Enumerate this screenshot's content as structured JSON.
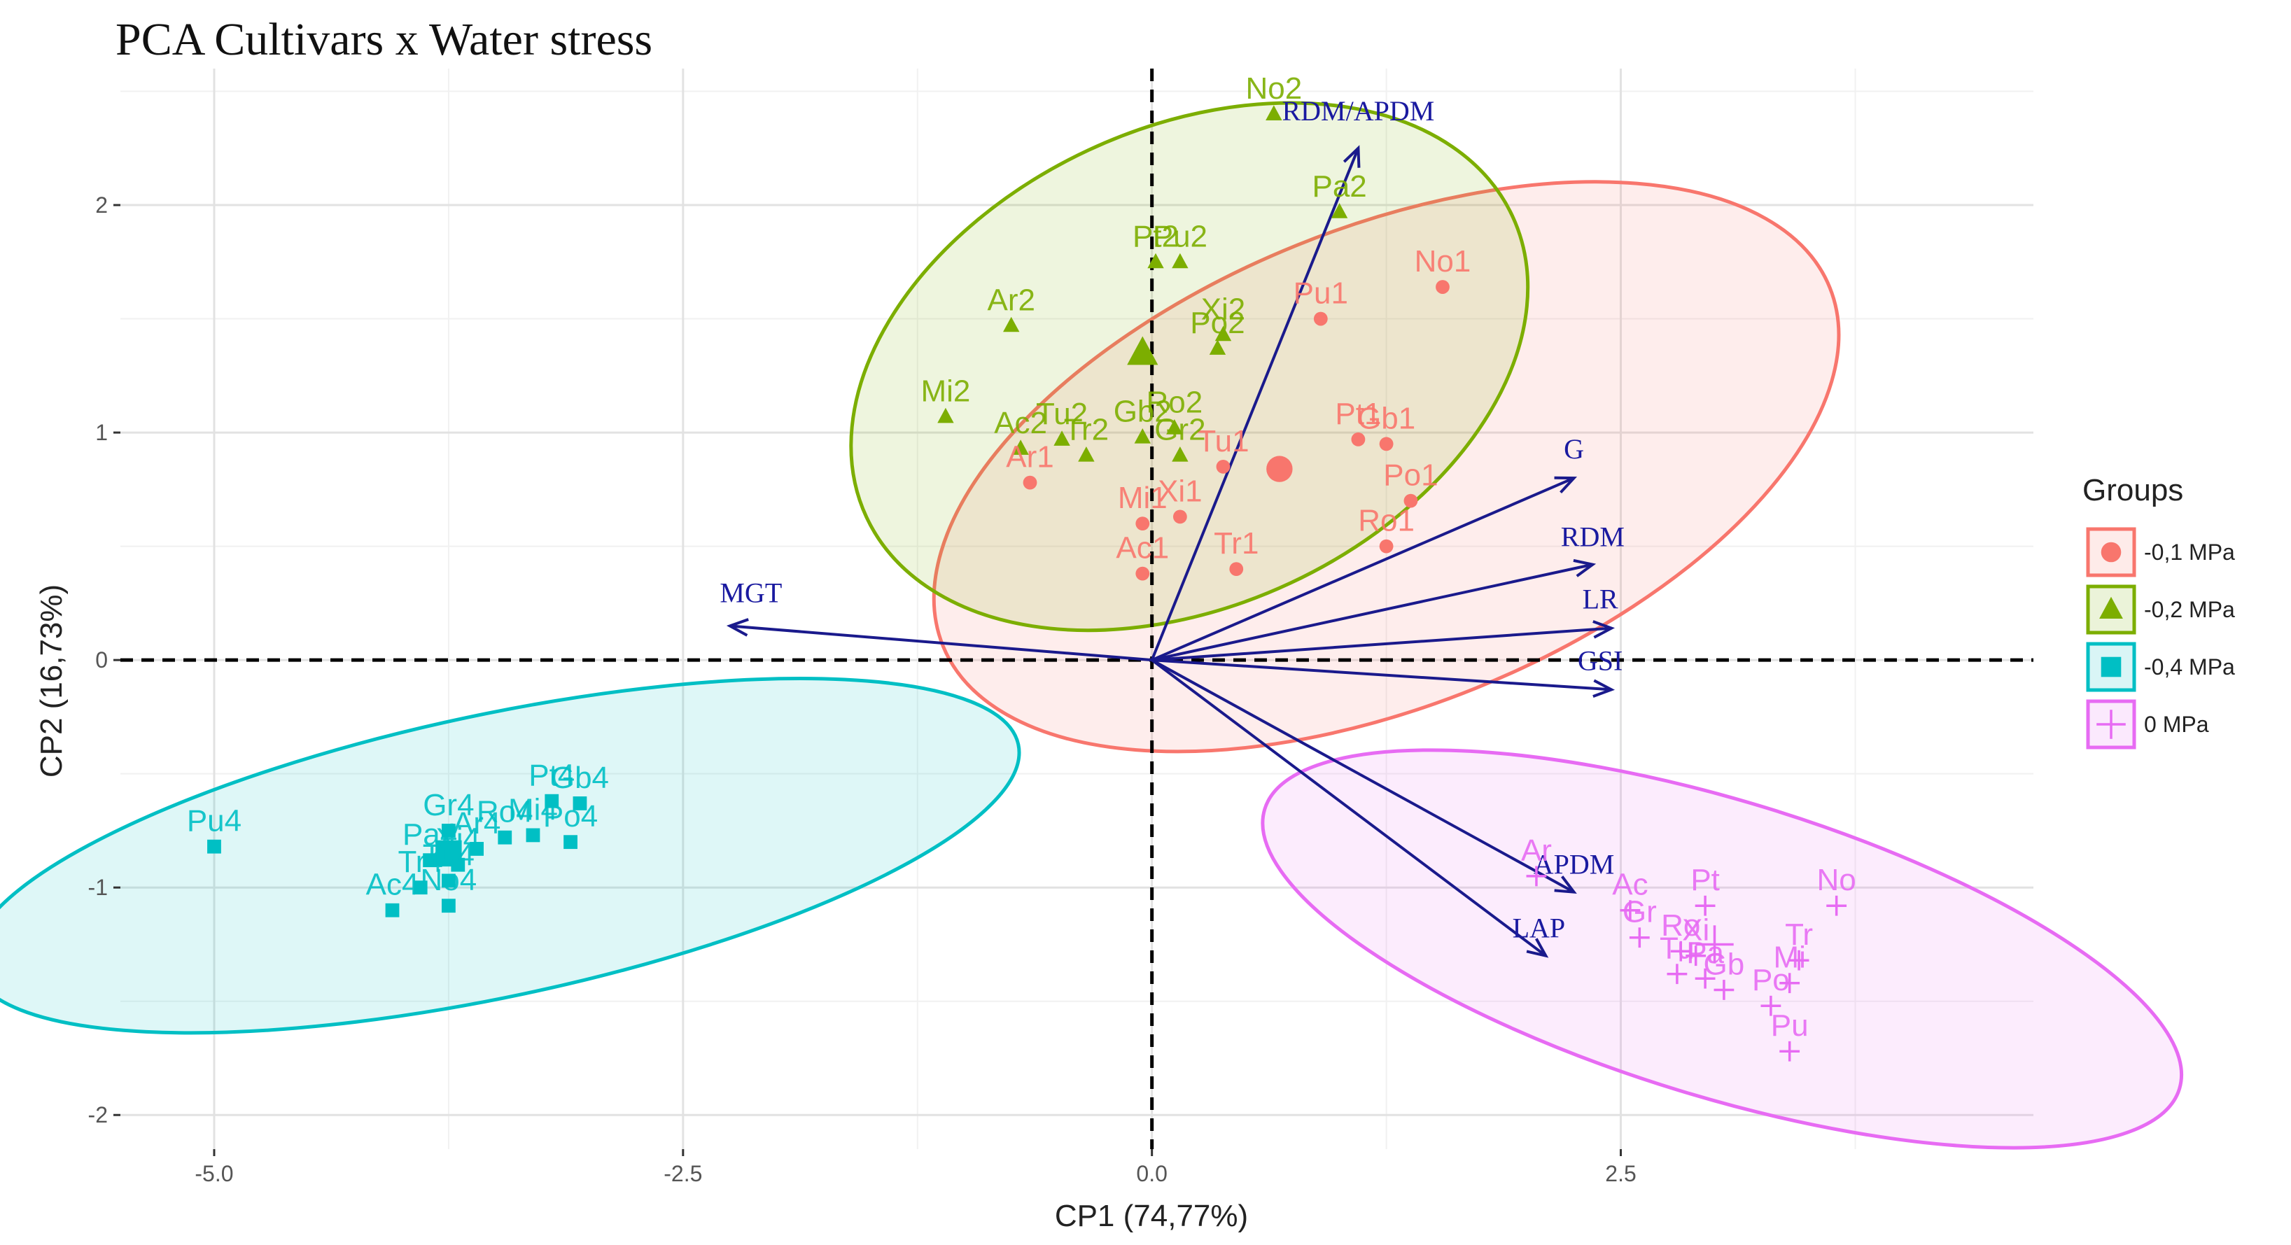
{
  "chart_data": {
    "type": "scatter",
    "title": "PCA Cultivars x Water stress",
    "xlabel": "CP1 (74,77%)",
    "ylabel": "CP2 (16,73%)",
    "xlim": [
      -5.5,
      4.7
    ],
    "ylim": [
      -2.15,
      2.6
    ],
    "xticks": [
      -5.0,
      -2.5,
      0.0,
      2.5
    ],
    "xtick_labels": [
      "-5.0",
      "-2.5",
      "0.0",
      "2.5"
    ],
    "yticks": [
      -2,
      -1,
      0,
      1,
      2
    ],
    "ytick_labels": [
      "-2",
      "-1",
      "0",
      "1",
      "2"
    ],
    "grid": true,
    "legend": {
      "title": "Groups",
      "position": "right"
    },
    "groups": [
      {
        "name": "-0,1 MPa",
        "color": "#F8766D",
        "marker": "circle",
        "centroid": [
          0.68,
          0.84
        ],
        "ellipse": {
          "cx": 1.25,
          "cy": 0.85,
          "rx": 2.55,
          "ry": 1.05,
          "angle_deg": 22
        },
        "points": [
          {
            "label": "No1",
            "x": 1.55,
            "y": 1.64
          },
          {
            "label": "Pu1",
            "x": 0.9,
            "y": 1.5
          },
          {
            "label": "Pt1",
            "x": 1.1,
            "y": 0.97
          },
          {
            "label": "Gb1",
            "x": 1.25,
            "y": 0.95
          },
          {
            "label": "Po1",
            "x": 1.38,
            "y": 0.7
          },
          {
            "label": "Ro1",
            "x": 1.25,
            "y": 0.5
          },
          {
            "label": "Ar1",
            "x": -0.65,
            "y": 0.78
          },
          {
            "label": "Mi1",
            "x": -0.05,
            "y": 0.6
          },
          {
            "label": "Xi1",
            "x": 0.15,
            "y": 0.63
          },
          {
            "label": "Tu1",
            "x": 0.38,
            "y": 0.85
          },
          {
            "label": "Ac1",
            "x": -0.05,
            "y": 0.38
          },
          {
            "label": "Tr1",
            "x": 0.45,
            "y": 0.4
          }
        ]
      },
      {
        "name": "-0,2 MPa",
        "color": "#7CAE00",
        "marker": "triangle",
        "centroid": [
          -0.05,
          1.35
        ],
        "ellipse": {
          "cx": 0.2,
          "cy": 1.29,
          "rx": 1.9,
          "ry": 1.05,
          "angle_deg": 25
        },
        "points": [
          {
            "label": "No2",
            "x": 0.65,
            "y": 2.4
          },
          {
            "label": "Pa2",
            "x": 1.0,
            "y": 1.97
          },
          {
            "label": "Pt2",
            "x": 0.02,
            "y": 1.75
          },
          {
            "label": "Pu2",
            "x": 0.15,
            "y": 1.75
          },
          {
            "label": "Xi2",
            "x": 0.38,
            "y": 1.43
          },
          {
            "label": "Po2",
            "x": 0.35,
            "y": 1.37
          },
          {
            "label": "Ar2",
            "x": -0.75,
            "y": 1.47
          },
          {
            "label": "Mi2",
            "x": -1.1,
            "y": 1.07
          },
          {
            "label": "Ac2",
            "x": -0.7,
            "y": 0.93
          },
          {
            "label": "Tu2",
            "x": -0.48,
            "y": 0.97
          },
          {
            "label": "Tr2",
            "x": -0.35,
            "y": 0.9
          },
          {
            "label": "Gb2",
            "x": -0.05,
            "y": 0.98
          },
          {
            "label": "Ro2",
            "x": 0.12,
            "y": 1.02
          },
          {
            "label": "Gr2",
            "x": 0.15,
            "y": 0.9
          }
        ]
      },
      {
        "name": "-0,4 MPa",
        "color": "#00BFC4",
        "marker": "square",
        "centroid": [
          -3.75,
          -0.85
        ],
        "ellipse": {
          "cx": -3.5,
          "cy": -0.86,
          "rx": 2.85,
          "ry": 0.62,
          "angle_deg": 12
        },
        "points": [
          {
            "label": "Pu4",
            "x": -5.0,
            "y": -0.82
          },
          {
            "label": "Gr4",
            "x": -3.75,
            "y": -0.75
          },
          {
            "label": "Pt4",
            "x": -3.2,
            "y": -0.62
          },
          {
            "label": "Gb4",
            "x": -3.05,
            "y": -0.63
          },
          {
            "label": "Ro4",
            "x": -3.45,
            "y": -0.78
          },
          {
            "label": "Mi4",
            "x": -3.3,
            "y": -0.77
          },
          {
            "label": "Po4",
            "x": -3.1,
            "y": -0.8
          },
          {
            "label": "Ar4",
            "x": -3.6,
            "y": -0.83
          },
          {
            "label": "Pa4",
            "x": -3.85,
            "y": -0.88
          },
          {
            "label": "Xi4",
            "x": -3.7,
            "y": -0.9
          },
          {
            "label": "Tu4",
            "x": -3.75,
            "y": -0.97
          },
          {
            "label": "Ac4",
            "x": -4.05,
            "y": -1.1
          },
          {
            "label": "Tr4",
            "x": -3.9,
            "y": -1.0
          },
          {
            "label": "No4",
            "x": -3.75,
            "y": -1.08
          }
        ]
      },
      {
        "name": "0 MPa",
        "color": "#E76BF3",
        "marker": "plus",
        "centroid": [
          3.0,
          -1.25
        ],
        "ellipse": {
          "cx": 3.04,
          "cy": -1.27,
          "rx": 2.55,
          "ry": 0.65,
          "angle_deg": -17
        },
        "points": [
          {
            "label": "No",
            "x": 3.65,
            "y": -1.08
          },
          {
            "label": "Pt",
            "x": 2.95,
            "y": -1.08
          },
          {
            "label": "Ac",
            "x": 2.55,
            "y": -1.1
          },
          {
            "label": "Ar",
            "x": 2.05,
            "y": -0.95
          },
          {
            "label": "Gr",
            "x": 2.6,
            "y": -1.22
          },
          {
            "label": "Ro",
            "x": 2.82,
            "y": -1.28
          },
          {
            "label": "Xi",
            "x": 2.9,
            "y": -1.3
          },
          {
            "label": "Tu",
            "x": 2.8,
            "y": -1.38
          },
          {
            "label": "Pa",
            "x": 2.95,
            "y": -1.4
          },
          {
            "label": "Tr",
            "x": 3.45,
            "y": -1.32
          },
          {
            "label": "Mi",
            "x": 3.4,
            "y": -1.42
          },
          {
            "label": "Gb",
            "x": 3.05,
            "y": -1.45
          },
          {
            "label": "Po",
            "x": 3.3,
            "y": -1.52
          },
          {
            "label": "Pu",
            "x": 3.4,
            "y": -1.72
          }
        ]
      }
    ],
    "loadings": [
      {
        "label": "RDM/APDM",
        "x": 1.1,
        "y": 2.25
      },
      {
        "label": "G",
        "x": 2.25,
        "y": 0.8
      },
      {
        "label": "RDM",
        "x": 2.35,
        "y": 0.42
      },
      {
        "label": "LR",
        "x": 2.45,
        "y": 0.14
      },
      {
        "label": "GSI",
        "x": 2.45,
        "y": -0.13
      },
      {
        "label": "MGT",
        "x": -2.25,
        "y": 0.15
      },
      {
        "label": "APDM",
        "x": 2.25,
        "y": -1.02
      },
      {
        "label": "LAP",
        "x": 2.1,
        "y": -1.3
      }
    ]
  }
}
